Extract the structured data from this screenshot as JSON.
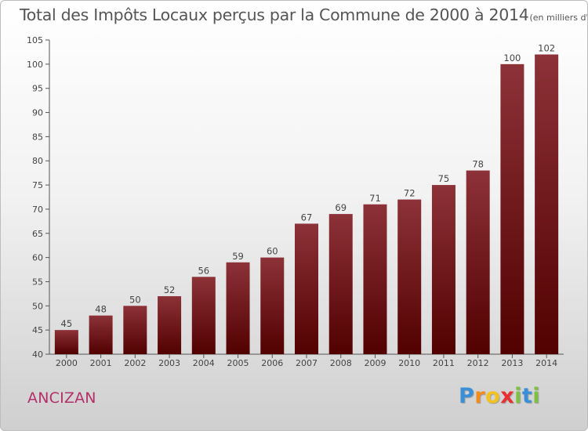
{
  "chart_data": {
    "type": "bar",
    "title": "Total des Impôts Locaux perçus par la Commune de 2000 à 2014",
    "subtitle": "(en milliers d'€)",
    "xlabel": "",
    "ylabel": "",
    "categories": [
      "2000",
      "2001",
      "2002",
      "2003",
      "2004",
      "2005",
      "2006",
      "2007",
      "2008",
      "2009",
      "2010",
      "2011",
      "2012",
      "2013",
      "2014"
    ],
    "values": [
      45,
      48,
      50,
      52,
      56,
      59,
      60,
      67,
      69,
      71,
      72,
      75,
      78,
      100,
      102
    ],
    "ylim": [
      40,
      105
    ],
    "yticks": [
      40,
      45,
      50,
      55,
      60,
      65,
      70,
      75,
      80,
      85,
      90,
      95,
      100,
      105
    ],
    "grid": false,
    "bar_color": "#7a1a22"
  },
  "commune": "ANCIZAN",
  "brand": {
    "letters": [
      "P",
      "r",
      "o",
      "x",
      "i",
      "t",
      "i"
    ],
    "colors": [
      "#3a8fd6",
      "#f28c1e",
      "#f2c21e",
      "#e8312f",
      "#7cc142",
      "#3a8fd6",
      "#7cc142"
    ]
  }
}
